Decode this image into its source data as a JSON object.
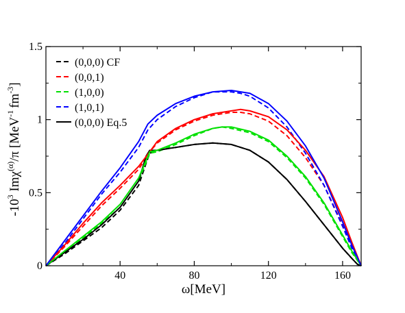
{
  "chart_data": {
    "type": "line",
    "title": "",
    "xlabel": "ω[MeV]",
    "ylabel_parts": {
      "prefix": "-10",
      "prefix_sup": "3",
      "main": " Imχ",
      "main_sup": "(α)",
      "unit": "/π [MeV",
      "unit_sup1": "-1",
      "unit_mid": "fm",
      "unit_sup2": "-3",
      "unit_end": "]"
    },
    "xlim": [
      0,
      170
    ],
    "ylim": [
      0,
      1.5
    ],
    "xticks": [
      40,
      80,
      120,
      160
    ],
    "yticks": [
      0,
      0.5,
      1,
      1.5
    ],
    "ytick_labels": [
      "0",
      "0.5",
      "1",
      "1.5"
    ],
    "grid": false,
    "legend_position": "top-left",
    "series": [
      {
        "name": "(0,0,0) CF",
        "color": "#000000",
        "style": "dashed",
        "x": [
          0,
          10,
          20,
          30,
          40,
          50,
          54,
          56,
          60,
          70,
          80,
          90,
          100,
          110,
          120,
          130,
          140,
          150,
          160,
          165,
          168,
          170
        ],
        "y": [
          0,
          0.08,
          0.17,
          0.26,
          0.38,
          0.55,
          0.7,
          0.77,
          0.79,
          0.81,
          0.83,
          0.84,
          0.83,
          0.79,
          0.71,
          0.59,
          0.44,
          0.28,
          0.12,
          0.05,
          0.01,
          0
        ]
      },
      {
        "name": "(0,0,1)",
        "color": "#ff0000",
        "style": "dashed",
        "x": [
          0,
          10,
          20,
          30,
          40,
          50,
          56,
          60,
          70,
          80,
          90,
          100,
          105,
          110,
          120,
          130,
          140,
          150,
          160,
          165,
          170
        ],
        "y": [
          0,
          0.13,
          0.27,
          0.41,
          0.53,
          0.66,
          0.78,
          0.84,
          0.93,
          0.99,
          1.03,
          1.05,
          1.05,
          1.04,
          0.99,
          0.89,
          0.74,
          0.55,
          0.28,
          0.13,
          0
        ]
      },
      {
        "name": "(1,0,0)",
        "color": "#00e000",
        "style": "dashed",
        "x": [
          0,
          10,
          20,
          30,
          40,
          50,
          56,
          60,
          70,
          80,
          90,
          95,
          100,
          110,
          120,
          130,
          140,
          150,
          160,
          165,
          170
        ],
        "y": [
          0,
          0.09,
          0.19,
          0.29,
          0.4,
          0.58,
          0.77,
          0.78,
          0.83,
          0.89,
          0.94,
          0.95,
          0.94,
          0.91,
          0.85,
          0.74,
          0.6,
          0.42,
          0.2,
          0.09,
          0
        ]
      },
      {
        "name": "(1,0,1)",
        "color": "#0000ff",
        "style": "dashed",
        "x": [
          0,
          10,
          20,
          30,
          40,
          50,
          55,
          60,
          70,
          80,
          90,
          100,
          105,
          110,
          120,
          130,
          140,
          150,
          160,
          165,
          170
        ],
        "y": [
          0,
          0.15,
          0.32,
          0.49,
          0.64,
          0.81,
          0.93,
          1.0,
          1.09,
          1.15,
          1.19,
          1.19,
          1.18,
          1.16,
          1.08,
          0.95,
          0.77,
          0.55,
          0.27,
          0.12,
          0
        ]
      },
      {
        "name": "(0,0,0) Eq.5",
        "color": "#000000",
        "style": "solid",
        "x": [
          0,
          10,
          20,
          30,
          40,
          50,
          54,
          56,
          60,
          70,
          80,
          90,
          100,
          110,
          120,
          130,
          140,
          150,
          160,
          165,
          168,
          170
        ],
        "y": [
          0,
          0.09,
          0.18,
          0.28,
          0.4,
          0.58,
          0.75,
          0.79,
          0.79,
          0.81,
          0.83,
          0.84,
          0.83,
          0.79,
          0.71,
          0.59,
          0.44,
          0.28,
          0.12,
          0.05,
          0.01,
          0
        ]
      },
      {
        "name": "",
        "color": "#ff0000",
        "style": "solid",
        "x": [
          0,
          10,
          20,
          30,
          40,
          50,
          56,
          60,
          70,
          80,
          90,
          100,
          105,
          110,
          120,
          130,
          140,
          150,
          160,
          165,
          170
        ],
        "y": [
          0,
          0.14,
          0.29,
          0.43,
          0.55,
          0.68,
          0.78,
          0.85,
          0.94,
          1.0,
          1.04,
          1.06,
          1.07,
          1.06,
          1.02,
          0.93,
          0.79,
          0.61,
          0.33,
          0.16,
          0
        ]
      },
      {
        "name": "",
        "color": "#00e000",
        "style": "solid",
        "x": [
          0,
          10,
          20,
          30,
          40,
          50,
          56,
          60,
          70,
          80,
          90,
          95,
          100,
          110,
          120,
          130,
          140,
          150,
          160,
          165,
          170
        ],
        "y": [
          0,
          0.1,
          0.2,
          0.3,
          0.42,
          0.6,
          0.78,
          0.79,
          0.84,
          0.9,
          0.94,
          0.95,
          0.95,
          0.92,
          0.86,
          0.75,
          0.61,
          0.43,
          0.21,
          0.1,
          0
        ]
      },
      {
        "name": "",
        "color": "#0000ff",
        "style": "solid",
        "x": [
          0,
          10,
          20,
          30,
          40,
          50,
          55,
          60,
          70,
          80,
          90,
          100,
          105,
          110,
          120,
          130,
          140,
          150,
          160,
          165,
          170
        ],
        "y": [
          0,
          0.17,
          0.34,
          0.51,
          0.67,
          0.85,
          0.97,
          1.03,
          1.11,
          1.16,
          1.19,
          1.2,
          1.19,
          1.18,
          1.11,
          0.99,
          0.82,
          0.6,
          0.3,
          0.14,
          0
        ]
      }
    ]
  }
}
